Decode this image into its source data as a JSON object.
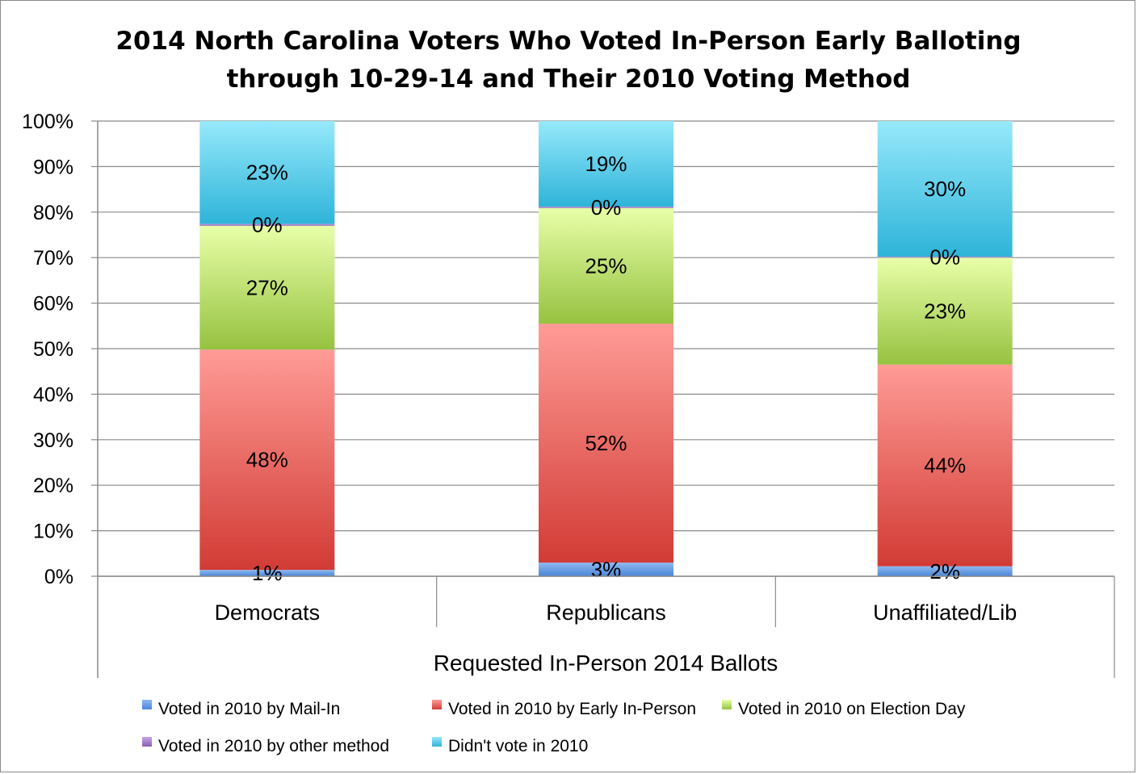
{
  "chart_data": {
    "type": "bar",
    "stacked": true,
    "title": [
      "2014 North Carolina Voters Who Voted In-Person Early Balloting",
      "through 10-29-14 and Their 2010 Voting Method"
    ],
    "xlabel": "Requested In-Person 2014 Ballots",
    "ylabel": "",
    "ylim": [
      0,
      100
    ],
    "yticks": [
      "0%",
      "10%",
      "20%",
      "30%",
      "40%",
      "50%",
      "60%",
      "70%",
      "80%",
      "90%",
      "100%"
    ],
    "categories": [
      "Democrats",
      "Republicans",
      "Unaffiliated/Lib"
    ],
    "series": [
      {
        "name": "Voted in 2010 by Mail-In",
        "values": [
          1.4,
          3,
          2.2
        ],
        "labels": [
          "1%",
          "3%",
          "2%"
        ],
        "color": "#4a86d8",
        "light": "#8fb8f0"
      },
      {
        "name": "Voted in 2010 by Early In-Person",
        "values": [
          48.4,
          52.5,
          44.3
        ],
        "labels": [
          "48%",
          "52%",
          "44%"
        ],
        "color": "#d23b35",
        "light": "#ff9b96"
      },
      {
        "name": "Voted in 2010 on Election Day",
        "values": [
          27.2,
          25.4,
          23.5
        ],
        "labels": [
          "27%",
          "25%",
          "23%"
        ],
        "color": "#96c240",
        "light": "#e8ffa8"
      },
      {
        "name": "Voted in 2010 by other method",
        "values": [
          0.4,
          0.3,
          0.2
        ],
        "labels": [
          "0%",
          "0%",
          "0%"
        ],
        "color": "#8a5eb0",
        "light": "#c6a6e6"
      },
      {
        "name": "Didn't vote in 2010",
        "values": [
          22.6,
          18.8,
          29.8
        ],
        "labels": [
          "23%",
          "19%",
          "30%"
        ],
        "color": "#2eb4d9",
        "light": "#96e9fb"
      }
    ],
    "grid": true,
    "legend": "bottom"
  }
}
